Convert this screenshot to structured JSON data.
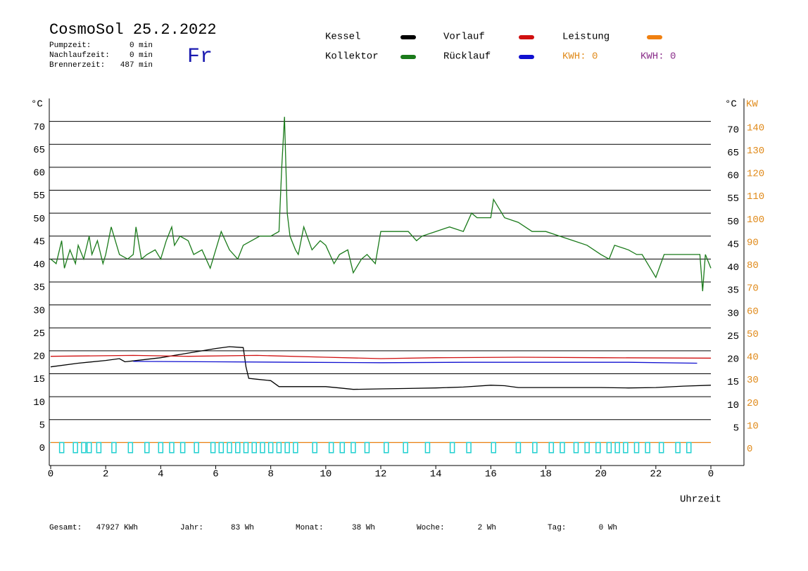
{
  "header": {
    "title": "CosmoSol 25.2.2022",
    "day": "Fr",
    "stats": [
      {
        "label": "Pumpzeit:",
        "value": "0 min"
      },
      {
        "label": "Nachlaufzeit:",
        "value": "0 min"
      },
      {
        "label": "Brennerzeit:",
        "value": "487 min"
      }
    ]
  },
  "kwh_labels": [
    {
      "text": "KWH: 0",
      "color": "#e08a1a"
    },
    {
      "text": "KWH: 0",
      "color": "#8a2e8a"
    }
  ],
  "footer": [
    {
      "label": "Gesamt:",
      "value": "47927 KWh"
    },
    {
      "label": "Jahr:",
      "value": "83 Wh"
    },
    {
      "label": "Monat:",
      "value": "38 Wh"
    },
    {
      "label": "Woche:",
      "value": "2 Wh"
    },
    {
      "label": "Tag:",
      "value": "0 Wh"
    }
  ],
  "chart_data": {
    "type": "line",
    "y_label": "°C",
    "y_right_label": "°C",
    "y2_label": "KW",
    "x_label": "Uhrzeit",
    "xlim": [
      0,
      25.2
    ],
    "xticks": [
      0,
      2,
      4,
      6,
      8,
      10,
      12,
      14,
      16,
      18,
      20,
      22,
      {
        "value": 24,
        "label": "0"
      }
    ],
    "ylim": [
      -5,
      75
    ],
    "yticks": [
      0,
      5,
      10,
      15,
      20,
      25,
      30,
      35,
      40,
      45,
      50,
      55,
      60,
      65,
      70
    ],
    "y_right_ticks": [
      5,
      10,
      15,
      20,
      25,
      30,
      35,
      40,
      45,
      50,
      55,
      60,
      65,
      70
    ],
    "y2lim": [
      -10,
      150
    ],
    "y2ticks": [
      0,
      10,
      20,
      30,
      40,
      50,
      60,
      70,
      80,
      90,
      100,
      110,
      120,
      130,
      140
    ],
    "grid": true,
    "series": [
      {
        "name": "Kessel",
        "color": "#000000",
        "x": [
          0,
          1,
          2,
          2.5,
          2.7,
          3,
          4,
          5,
          6,
          6.5,
          7,
          7.1,
          7.2,
          7.5,
          8,
          8.3,
          9,
          10,
          10.5,
          11,
          12,
          13,
          14,
          15,
          16,
          16.5,
          17,
          18,
          19,
          20,
          21,
          22,
          23,
          24
        ],
        "values": [
          16.5,
          17.3,
          17.9,
          18.3,
          17.6,
          17.8,
          18.5,
          19.5,
          20.5,
          20.9,
          20.7,
          16.5,
          14.0,
          13.8,
          13.5,
          12.2,
          12.2,
          12.2,
          11.9,
          11.6,
          11.7,
          11.8,
          11.9,
          12.1,
          12.5,
          12.4,
          12.0,
          12.0,
          12.0,
          12.0,
          11.9,
          12.0,
          12.3,
          12.5
        ]
      },
      {
        "name": "Kollektor",
        "color": "#1a7a1a",
        "x": [
          0,
          0.2,
          0.4,
          0.5,
          0.7,
          0.9,
          1.0,
          1.2,
          1.4,
          1.5,
          1.7,
          1.9,
          2.0,
          2.2,
          2.5,
          2.8,
          3.0,
          3.1,
          3.3,
          3.5,
          3.8,
          4.0,
          4.2,
          4.4,
          4.5,
          4.7,
          5.0,
          5.2,
          5.5,
          5.8,
          6.0,
          6.2,
          6.5,
          6.8,
          7.0,
          7.3,
          7.6,
          8.0,
          8.3,
          8.4,
          8.5,
          8.6,
          8.7,
          8.9,
          9.0,
          9.2,
          9.5,
          9.8,
          10.0,
          10.3,
          10.5,
          10.8,
          11.0,
          11.3,
          11.5,
          11.8,
          12.0,
          12.3,
          12.5,
          13.0,
          13.3,
          13.5,
          14.0,
          14.5,
          15.0,
          15.3,
          15.5,
          16.0,
          16.1,
          16.5,
          17.0,
          17.5,
          18.0,
          18.5,
          19.0,
          19.5,
          20.0,
          20.3,
          20.5,
          21.0,
          21.3,
          21.5,
          21.8,
          22.0,
          22.3,
          22.5,
          23.0,
          23.5,
          23.6,
          23.7,
          23.8,
          24.0
        ],
        "values": [
          40,
          39,
          44,
          38,
          42,
          39,
          43,
          40,
          45,
          41,
          44,
          39,
          41,
          47,
          41,
          40,
          41,
          47,
          40,
          41,
          42,
          40,
          44,
          47,
          43,
          45,
          44,
          41,
          42,
          38,
          42,
          46,
          42,
          40,
          43,
          44,
          45,
          45,
          46,
          60,
          71,
          50,
          45,
          42,
          41,
          47,
          42,
          44,
          43,
          39,
          41,
          42,
          37,
          40,
          41,
          39,
          46,
          46,
          46,
          46,
          44,
          45,
          46,
          47,
          46,
          50,
          49,
          49,
          53,
          49,
          48,
          46,
          46,
          45,
          44,
          43,
          41,
          40,
          43,
          42,
          41,
          41,
          38,
          36,
          41,
          41,
          41,
          41,
          41,
          33,
          41,
          38
        ]
      },
      {
        "name": "Vorlauf",
        "color": "#d01010",
        "x": [
          0,
          3,
          5,
          7.5,
          10,
          12,
          14,
          17,
          20,
          24
        ],
        "values": [
          18.8,
          19.0,
          18.8,
          19.0,
          18.6,
          18.3,
          18.5,
          18.6,
          18.5,
          18.4
        ]
      },
      {
        "name": "Rücklauf",
        "color": "#1010d0",
        "x": [
          3,
          6,
          9,
          12,
          15,
          18,
          21,
          23.5
        ],
        "values": [
          17.7,
          17.6,
          17.5,
          17.4,
          17.5,
          17.5,
          17.5,
          17.3
        ]
      },
      {
        "name": "Leistung",
        "color": "#f08010",
        "axis": "y2",
        "x": [
          0,
          24
        ],
        "values": [
          0,
          0
        ]
      },
      {
        "color": "#20d0d0",
        "style": "pulse",
        "x": [
          0.4,
          0.9,
          1.2,
          1.4,
          1.75,
          2.3,
          2.9,
          3.5,
          4.0,
          4.4,
          4.8,
          5.3,
          5.9,
          6.2,
          6.5,
          6.8,
          7.1,
          7.4,
          7.7,
          8.0,
          8.3,
          8.6,
          8.9,
          9.6,
          10.2,
          10.6,
          11.0,
          11.5,
          12.2,
          12.9,
          13.7,
          14.6,
          15.2,
          16.1,
          17.0,
          17.6,
          18.2,
          18.6,
          19.1,
          19.5,
          19.9,
          20.3,
          20.6,
          20.9,
          21.3,
          21.7,
          22.2,
          22.8,
          23.2
        ],
        "values": [
          -2.2,
          -2.2,
          -2.2,
          -2.2,
          -2.2,
          -2.2,
          -2.2,
          -2.2,
          -2.2,
          -2.2,
          -2.2,
          -2.2,
          -2.2,
          -2.2,
          -2.2,
          -2.2,
          -2.2,
          -2.2,
          -2.2,
          -2.2,
          -2.2,
          -2.2,
          -2.2,
          -2.2,
          -2.2,
          -2.2,
          -2.2,
          -2.2,
          -2.2,
          -2.2,
          -2.2,
          -2.2,
          -2.2,
          -2.2,
          -2.2,
          -2.2,
          -2.2,
          -2.2,
          -2.2,
          -2.2,
          -2.2,
          -2.2,
          -2.2,
          -2.2,
          -2.2,
          -2.2,
          -2.2,
          -2.2,
          -2.2
        ]
      }
    ]
  }
}
